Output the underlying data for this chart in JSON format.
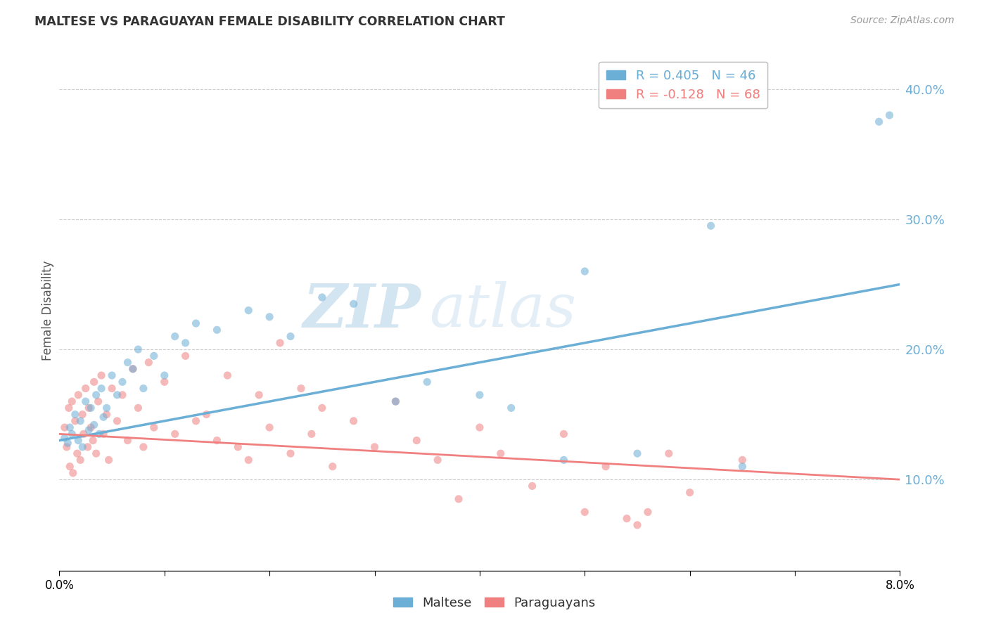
{
  "title": "MALTESE VS PARAGUAYAN FEMALE DISABILITY CORRELATION CHART",
  "source": "Source: ZipAtlas.com",
  "ylabel": "Female Disability",
  "xmin": 0.0,
  "xmax": 8.0,
  "ymin": 3.0,
  "ymax": 43.0,
  "yticks": [
    10.0,
    20.0,
    30.0,
    40.0
  ],
  "legend_entries": [
    {
      "label": "R = 0.405   N = 46",
      "color": "#6baed6"
    },
    {
      "label": "R = -0.128   N = 68",
      "color": "#f08080"
    }
  ],
  "maltese_color": "#6baed6",
  "paraguayan_color": "#f08080",
  "maltese_scatter": [
    [
      0.05,
      13.2
    ],
    [
      0.08,
      12.8
    ],
    [
      0.1,
      14.0
    ],
    [
      0.12,
      13.5
    ],
    [
      0.15,
      15.0
    ],
    [
      0.18,
      13.0
    ],
    [
      0.2,
      14.5
    ],
    [
      0.22,
      12.5
    ],
    [
      0.25,
      16.0
    ],
    [
      0.28,
      13.8
    ],
    [
      0.3,
      15.5
    ],
    [
      0.33,
      14.2
    ],
    [
      0.35,
      16.5
    ],
    [
      0.38,
      13.5
    ],
    [
      0.4,
      17.0
    ],
    [
      0.42,
      14.8
    ],
    [
      0.45,
      15.5
    ],
    [
      0.5,
      18.0
    ],
    [
      0.55,
      16.5
    ],
    [
      0.6,
      17.5
    ],
    [
      0.65,
      19.0
    ],
    [
      0.7,
      18.5
    ],
    [
      0.75,
      20.0
    ],
    [
      0.8,
      17.0
    ],
    [
      0.9,
      19.5
    ],
    [
      1.0,
      18.0
    ],
    [
      1.1,
      21.0
    ],
    [
      1.2,
      20.5
    ],
    [
      1.3,
      22.0
    ],
    [
      1.5,
      21.5
    ],
    [
      1.8,
      23.0
    ],
    [
      2.0,
      22.5
    ],
    [
      2.2,
      21.0
    ],
    [
      2.5,
      24.0
    ],
    [
      2.8,
      23.5
    ],
    [
      3.2,
      16.0
    ],
    [
      3.5,
      17.5
    ],
    [
      4.0,
      16.5
    ],
    [
      4.3,
      15.5
    ],
    [
      4.8,
      11.5
    ],
    [
      5.0,
      26.0
    ],
    [
      5.5,
      12.0
    ],
    [
      6.2,
      29.5
    ],
    [
      6.5,
      11.0
    ],
    [
      7.8,
      37.5
    ],
    [
      7.9,
      38.0
    ]
  ],
  "paraguayan_scatter": [
    [
      0.05,
      14.0
    ],
    [
      0.07,
      12.5
    ],
    [
      0.09,
      15.5
    ],
    [
      0.1,
      11.0
    ],
    [
      0.12,
      16.0
    ],
    [
      0.13,
      10.5
    ],
    [
      0.15,
      14.5
    ],
    [
      0.17,
      12.0
    ],
    [
      0.18,
      16.5
    ],
    [
      0.2,
      11.5
    ],
    [
      0.22,
      15.0
    ],
    [
      0.23,
      13.5
    ],
    [
      0.25,
      17.0
    ],
    [
      0.27,
      12.5
    ],
    [
      0.28,
      15.5
    ],
    [
      0.3,
      14.0
    ],
    [
      0.32,
      13.0
    ],
    [
      0.33,
      17.5
    ],
    [
      0.35,
      12.0
    ],
    [
      0.37,
      16.0
    ],
    [
      0.4,
      18.0
    ],
    [
      0.42,
      13.5
    ],
    [
      0.45,
      15.0
    ],
    [
      0.47,
      11.5
    ],
    [
      0.5,
      17.0
    ],
    [
      0.55,
      14.5
    ],
    [
      0.6,
      16.5
    ],
    [
      0.65,
      13.0
    ],
    [
      0.7,
      18.5
    ],
    [
      0.75,
      15.5
    ],
    [
      0.8,
      12.5
    ],
    [
      0.85,
      19.0
    ],
    [
      0.9,
      14.0
    ],
    [
      1.0,
      17.5
    ],
    [
      1.1,
      13.5
    ],
    [
      1.2,
      19.5
    ],
    [
      1.3,
      14.5
    ],
    [
      1.4,
      15.0
    ],
    [
      1.5,
      13.0
    ],
    [
      1.6,
      18.0
    ],
    [
      1.7,
      12.5
    ],
    [
      1.8,
      11.5
    ],
    [
      1.9,
      16.5
    ],
    [
      2.0,
      14.0
    ],
    [
      2.1,
      20.5
    ],
    [
      2.2,
      12.0
    ],
    [
      2.3,
      17.0
    ],
    [
      2.4,
      13.5
    ],
    [
      2.5,
      15.5
    ],
    [
      2.6,
      11.0
    ],
    [
      2.8,
      14.5
    ],
    [
      3.0,
      12.5
    ],
    [
      3.2,
      16.0
    ],
    [
      3.4,
      13.0
    ],
    [
      3.6,
      11.5
    ],
    [
      3.8,
      8.5
    ],
    [
      4.0,
      14.0
    ],
    [
      4.2,
      12.0
    ],
    [
      4.5,
      9.5
    ],
    [
      4.8,
      13.5
    ],
    [
      5.0,
      7.5
    ],
    [
      5.2,
      11.0
    ],
    [
      5.4,
      7.0
    ],
    [
      5.5,
      6.5
    ],
    [
      5.6,
      7.5
    ],
    [
      5.8,
      12.0
    ],
    [
      6.0,
      9.0
    ],
    [
      6.5,
      11.5
    ]
  ],
  "maltese_trend_x": [
    0.0,
    8.0
  ],
  "maltese_trend_y": [
    13.0,
    25.0
  ],
  "paraguayan_trend_x": [
    0.0,
    8.0
  ],
  "paraguayan_trend_y": [
    13.5,
    10.0
  ],
  "watermark_zip": "ZIP",
  "watermark_atlas": "atlas",
  "grid_color": "#cccccc",
  "background_color": "#ffffff",
  "title_color": "#333333",
  "source_color": "#999999"
}
